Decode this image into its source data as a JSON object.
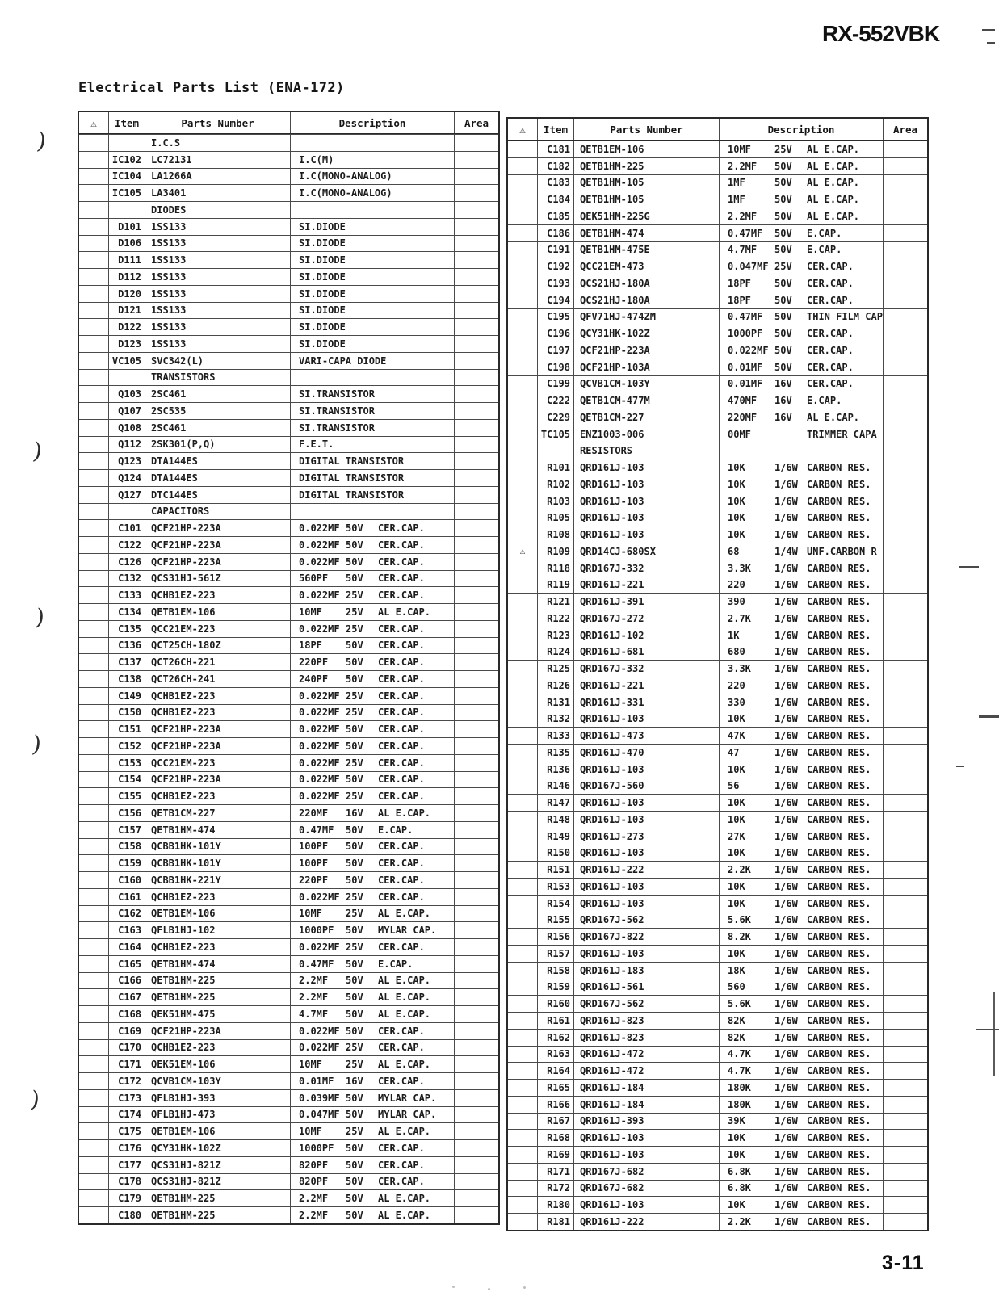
{
  "page": {
    "model": "RX-552VBK",
    "title": "Electrical Parts List (ENA-172)",
    "page_number": "3-11"
  },
  "table_headers": {
    "warning": "⚠",
    "item": "Item",
    "parts_number": "Parts Number",
    "description": "Description",
    "area": "Area"
  },
  "artifacts": {
    "margin_mark": ")"
  },
  "left_table": {
    "rows": [
      {
        "section": "I.C.S"
      },
      {
        "item": "IC102",
        "part": "LC72131",
        "d1": "I.C(M)"
      },
      {
        "item": "IC104",
        "part": "LA1266A",
        "d1": "I.C(MONO-ANALOG)"
      },
      {
        "item": "IC105",
        "part": "LA3401",
        "d1": "I.C(MONO-ANALOG)"
      },
      {
        "section": "DIODES"
      },
      {
        "item": "D101",
        "part": "1SS133",
        "d1": "SI.DIODE"
      },
      {
        "item": "D106",
        "part": "1SS133",
        "d1": "SI.DIODE"
      },
      {
        "item": "D111",
        "part": "1SS133",
        "d1": "SI.DIODE"
      },
      {
        "item": "D112",
        "part": "1SS133",
        "d1": "SI.DIODE"
      },
      {
        "item": "D120",
        "part": "1SS133",
        "d1": "SI.DIODE"
      },
      {
        "item": "D121",
        "part": "1SS133",
        "d1": "SI.DIODE"
      },
      {
        "item": "D122",
        "part": "1SS133",
        "d1": "SI.DIODE"
      },
      {
        "item": "D123",
        "part": "1SS133",
        "d1": "SI.DIODE"
      },
      {
        "item": "VC105",
        "part": "SVC342(L)",
        "d1": "VARI-CAPA DIODE"
      },
      {
        "section": "TRANSISTORS"
      },
      {
        "item": "Q103",
        "part": "2SC461",
        "d1": "SI.TRANSISTOR"
      },
      {
        "item": "Q107",
        "part": "2SC535",
        "d1": "SI.TRANSISTOR"
      },
      {
        "item": "Q108",
        "part": "2SC461",
        "d1": "SI.TRANSISTOR"
      },
      {
        "item": "Q112",
        "part": "2SK301(P,Q)",
        "d1": "F.E.T."
      },
      {
        "item": "Q123",
        "part": "DTA144ES",
        "d1": "DIGITAL TRANSISTOR"
      },
      {
        "item": "Q124",
        "part": "DTA144ES",
        "d1": "DIGITAL TRANSISTOR"
      },
      {
        "item": "Q127",
        "part": "DTC144ES",
        "d1": "DIGITAL TRANSISTOR"
      },
      {
        "section": "CAPACITORS"
      },
      {
        "item": "C101",
        "part": "QCF21HP-223A",
        "d1": "0.022MF",
        "d2": "50V",
        "d3": "CER.CAP."
      },
      {
        "item": "C122",
        "part": "QCF21HP-223A",
        "d1": "0.022MF",
        "d2": "50V",
        "d3": "CER.CAP."
      },
      {
        "item": "C126",
        "part": "QCF21HP-223A",
        "d1": "0.022MF",
        "d2": "50V",
        "d3": "CER.CAP."
      },
      {
        "item": "C132",
        "part": "QCS31HJ-561Z",
        "d1": "560PF",
        "d2": "50V",
        "d3": "CER.CAP."
      },
      {
        "item": "C133",
        "part": "QCHB1EZ-223",
        "d1": "0.022MF",
        "d2": "25V",
        "d3": "CER.CAP."
      },
      {
        "item": "C134",
        "part": "QETB1EM-106",
        "d1": "10MF",
        "d2": "25V",
        "d3": "AL E.CAP."
      },
      {
        "item": "C135",
        "part": "QCC21EM-223",
        "d1": "0.022MF",
        "d2": "25V",
        "d3": "CER.CAP."
      },
      {
        "item": "C136",
        "part": "QCT25CH-180Z",
        "d1": "18PF",
        "d2": "50V",
        "d3": "CER.CAP."
      },
      {
        "item": "C137",
        "part": "QCT26CH-221",
        "d1": "220PF",
        "d2": "50V",
        "d3": "CER.CAP."
      },
      {
        "item": "C138",
        "part": "QCT26CH-241",
        "d1": "240PF",
        "d2": "50V",
        "d3": "CER.CAP."
      },
      {
        "item": "C149",
        "part": "QCHB1EZ-223",
        "d1": "0.022MF",
        "d2": "25V",
        "d3": "CER.CAP."
      },
      {
        "item": "C150",
        "part": "QCHB1EZ-223",
        "d1": "0.022MF",
        "d2": "25V",
        "d3": "CER.CAP."
      },
      {
        "item": "C151",
        "part": "QCF21HP-223A",
        "d1": "0.022MF",
        "d2": "50V",
        "d3": "CER.CAP."
      },
      {
        "item": "C152",
        "part": "QCF21HP-223A",
        "d1": "0.022MF",
        "d2": "50V",
        "d3": "CER.CAP."
      },
      {
        "item": "C153",
        "part": "QCC21EM-223",
        "d1": "0.022MF",
        "d2": "25V",
        "d3": "CER.CAP."
      },
      {
        "item": "C154",
        "part": "QCF21HP-223A",
        "d1": "0.022MF",
        "d2": "50V",
        "d3": "CER.CAP."
      },
      {
        "item": "C155",
        "part": "QCHB1EZ-223",
        "d1": "0.022MF",
        "d2": "25V",
        "d3": "CER.CAP."
      },
      {
        "item": "C156",
        "part": "QETB1CM-227",
        "d1": "220MF",
        "d2": "16V",
        "d3": "AL E.CAP."
      },
      {
        "item": "C157",
        "part": "QETB1HM-474",
        "d1": "0.47MF",
        "d2": "50V",
        "d3": "E.CAP."
      },
      {
        "item": "C158",
        "part": "QCBB1HK-101Y",
        "d1": "100PF",
        "d2": "50V",
        "d3": "CER.CAP."
      },
      {
        "item": "C159",
        "part": "QCBB1HK-101Y",
        "d1": "100PF",
        "d2": "50V",
        "d3": "CER.CAP."
      },
      {
        "item": "C160",
        "part": "QCBB1HK-221Y",
        "d1": "220PF",
        "d2": "50V",
        "d3": "CER.CAP."
      },
      {
        "item": "C161",
        "part": "QCHB1EZ-223",
        "d1": "0.022MF",
        "d2": "25V",
        "d3": "CER.CAP."
      },
      {
        "item": "C162",
        "part": "QETB1EM-106",
        "d1": "10MF",
        "d2": "25V",
        "d3": "AL E.CAP."
      },
      {
        "item": "C163",
        "part": "QFLB1HJ-102",
        "d1": "1000PF",
        "d2": "50V",
        "d3": "MYLAR CAP."
      },
      {
        "item": "C164",
        "part": "QCHB1EZ-223",
        "d1": "0.022MF",
        "d2": "25V",
        "d3": "CER.CAP."
      },
      {
        "item": "C165",
        "part": "QETB1HM-474",
        "d1": "0.47MF",
        "d2": "50V",
        "d3": "E.CAP."
      },
      {
        "item": "C166",
        "part": "QETB1HM-225",
        "d1": "2.2MF",
        "d2": "50V",
        "d3": "AL E.CAP."
      },
      {
        "item": "C167",
        "part": "QETB1HM-225",
        "d1": "2.2MF",
        "d2": "50V",
        "d3": "AL E.CAP."
      },
      {
        "item": "C168",
        "part": "QEK51HM-475",
        "d1": "4.7MF",
        "d2": "50V",
        "d3": "AL E.CAP."
      },
      {
        "item": "C169",
        "part": "QCF21HP-223A",
        "d1": "0.022MF",
        "d2": "50V",
        "d3": "CER.CAP."
      },
      {
        "item": "C170",
        "part": "QCHB1EZ-223",
        "d1": "0.022MF",
        "d2": "25V",
        "d3": "CER.CAP."
      },
      {
        "item": "C171",
        "part": "QEK51EM-106",
        "d1": "10MF",
        "d2": "25V",
        "d3": "AL E.CAP."
      },
      {
        "item": "C172",
        "part": "QCVB1CM-103Y",
        "d1": "0.01MF",
        "d2": "16V",
        "d3": "CER.CAP."
      },
      {
        "item": "C173",
        "part": "QFLB1HJ-393",
        "d1": "0.039MF",
        "d2": "50V",
        "d3": "MYLAR CAP."
      },
      {
        "item": "C174",
        "part": "QFLB1HJ-473",
        "d1": "0.047MF",
        "d2": "50V",
        "d3": "MYLAR CAP."
      },
      {
        "item": "C175",
        "part": "QETB1EM-106",
        "d1": "10MF",
        "d2": "25V",
        "d3": "AL E.CAP."
      },
      {
        "item": "C176",
        "part": "QCY31HK-102Z",
        "d1": "1000PF",
        "d2": "50V",
        "d3": "CER.CAP."
      },
      {
        "item": "C177",
        "part": "QCS31HJ-821Z",
        "d1": "820PF",
        "d2": "50V",
        "d3": "CER.CAP."
      },
      {
        "item": "C178",
        "part": "QCS31HJ-821Z",
        "d1": "820PF",
        "d2": "50V",
        "d3": "CER.CAP."
      },
      {
        "item": "C179",
        "part": "QETB1HM-225",
        "d1": "2.2MF",
        "d2": "50V",
        "d3": "AL E.CAP."
      },
      {
        "item": "C180",
        "part": "QETB1HM-225",
        "d1": "2.2MF",
        "d2": "50V",
        "d3": "AL E.CAP."
      }
    ]
  },
  "right_table": {
    "rows": [
      {
        "item": "C181",
        "part": "QETB1EM-106",
        "d1": "10MF",
        "d2": "25V",
        "d3": "AL E.CAP."
      },
      {
        "item": "C182",
        "part": "QETB1HM-225",
        "d1": "2.2MF",
        "d2": "50V",
        "d3": "AL E.CAP."
      },
      {
        "item": "C183",
        "part": "QETB1HM-105",
        "d1": "1MF",
        "d2": "50V",
        "d3": "AL E.CAP."
      },
      {
        "item": "C184",
        "part": "QETB1HM-105",
        "d1": "1MF",
        "d2": "50V",
        "d3": "AL E.CAP."
      },
      {
        "item": "C185",
        "part": "QEK51HM-225G",
        "d1": "2.2MF",
        "d2": "50V",
        "d3": "AL E.CAP."
      },
      {
        "item": "C186",
        "part": "QETB1HM-474",
        "d1": "0.47MF",
        "d2": "50V",
        "d3": "E.CAP."
      },
      {
        "item": "C191",
        "part": "QETB1HM-475E",
        "d1": "4.7MF",
        "d2": "50V",
        "d3": "E.CAP."
      },
      {
        "item": "C192",
        "part": "QCC21EM-473",
        "d1": "0.047MF",
        "d2": "25V",
        "d3": "CER.CAP."
      },
      {
        "item": "C193",
        "part": "QCS21HJ-180A",
        "d1": "18PF",
        "d2": "50V",
        "d3": "CER.CAP."
      },
      {
        "item": "C194",
        "part": "QCS21HJ-180A",
        "d1": "18PF",
        "d2": "50V",
        "d3": "CER.CAP."
      },
      {
        "item": "C195",
        "part": "QFV71HJ-474ZM",
        "d1": "0.47MF",
        "d2": "50V",
        "d3": "THIN FILM CAP."
      },
      {
        "item": "C196",
        "part": "QCY31HK-102Z",
        "d1": "1000PF",
        "d2": "50V",
        "d3": "CER.CAP."
      },
      {
        "item": "C197",
        "part": "QCF21HP-223A",
        "d1": "0.022MF",
        "d2": "50V",
        "d3": "CER.CAP."
      },
      {
        "item": "C198",
        "part": "QCF21HP-103A",
        "d1": "0.01MF",
        "d2": "50V",
        "d3": "CER.CAP."
      },
      {
        "item": "C199",
        "part": "QCVB1CM-103Y",
        "d1": "0.01MF",
        "d2": "16V",
        "d3": "CER.CAP."
      },
      {
        "item": "C222",
        "part": "QETB1CM-477M",
        "d1": "470MF",
        "d2": "16V",
        "d3": "E.CAP."
      },
      {
        "item": "C229",
        "part": "QETB1CM-227",
        "d1": "220MF",
        "d2": "16V",
        "d3": "AL E.CAP."
      },
      {
        "item": "TC105",
        "part": "ENZ1003-006",
        "d1": "00MF",
        "d2": "",
        "d3": "TRIMMER CAPA"
      },
      {
        "section": "RESISTORS"
      },
      {
        "item": "R101",
        "part": "QRD161J-103",
        "d1": "10K",
        "d2": "1/6W",
        "d3": "CARBON RES."
      },
      {
        "item": "R102",
        "part": "QRD161J-103",
        "d1": "10K",
        "d2": "1/6W",
        "d3": "CARBON RES."
      },
      {
        "item": "R103",
        "part": "QRD161J-103",
        "d1": "10K",
        "d2": "1/6W",
        "d3": "CARBON RES."
      },
      {
        "item": "R105",
        "part": "QRD161J-103",
        "d1": "10K",
        "d2": "1/6W",
        "d3": "CARBON RES."
      },
      {
        "item": "R108",
        "part": "QRD161J-103",
        "d1": "10K",
        "d2": "1/6W",
        "d3": "CARBON RES."
      },
      {
        "warn": "⚠",
        "item": "R109",
        "part": "QRD14CJ-680SX",
        "d1": "68",
        "d2": "1/4W",
        "d3": "UNF.CARBON R"
      },
      {
        "item": "R118",
        "part": "QRD167J-332",
        "d1": "3.3K",
        "d2": "1/6W",
        "d3": "CARBON RES."
      },
      {
        "item": "R119",
        "part": "QRD161J-221",
        "d1": "220",
        "d2": "1/6W",
        "d3": "CARBON RES."
      },
      {
        "item": "R121",
        "part": "QRD161J-391",
        "d1": "390",
        "d2": "1/6W",
        "d3": "CARBON RES."
      },
      {
        "item": "R122",
        "part": "QRD167J-272",
        "d1": "2.7K",
        "d2": "1/6W",
        "d3": "CARBON RES."
      },
      {
        "item": "R123",
        "part": "QRD161J-102",
        "d1": "1K",
        "d2": "1/6W",
        "d3": "CARBON RES."
      },
      {
        "item": "R124",
        "part": "QRD161J-681",
        "d1": "680",
        "d2": "1/6W",
        "d3": "CARBON RES."
      },
      {
        "item": "R125",
        "part": "QRD167J-332",
        "d1": "3.3K",
        "d2": "1/6W",
        "d3": "CARBON RES."
      },
      {
        "item": "R126",
        "part": "QRD161J-221",
        "d1": "220",
        "d2": "1/6W",
        "d3": "CARBON RES."
      },
      {
        "item": "R131",
        "part": "QRD161J-331",
        "d1": "330",
        "d2": "1/6W",
        "d3": "CARBON RES."
      },
      {
        "item": "R132",
        "part": "QRD161J-103",
        "d1": "10K",
        "d2": "1/6W",
        "d3": "CARBON RES."
      },
      {
        "item": "R133",
        "part": "QRD161J-473",
        "d1": "47K",
        "d2": "1/6W",
        "d3": "CARBON RES."
      },
      {
        "item": "R135",
        "part": "QRD161J-470",
        "d1": "47",
        "d2": "1/6W",
        "d3": "CARBON RES."
      },
      {
        "item": "R136",
        "part": "QRD161J-103",
        "d1": "10K",
        "d2": "1/6W",
        "d3": "CARBON RES."
      },
      {
        "item": "R146",
        "part": "QRD167J-560",
        "d1": "56",
        "d2": "1/6W",
        "d3": "CARBON RES."
      },
      {
        "item": "R147",
        "part": "QRD161J-103",
        "d1": "10K",
        "d2": "1/6W",
        "d3": "CARBON RES."
      },
      {
        "item": "R148",
        "part": "QRD161J-103",
        "d1": "10K",
        "d2": "1/6W",
        "d3": "CARBON RES."
      },
      {
        "item": "R149",
        "part": "QRD161J-273",
        "d1": "27K",
        "d2": "1/6W",
        "d3": "CARBON RES."
      },
      {
        "item": "R150",
        "part": "QRD161J-103",
        "d1": "10K",
        "d2": "1/6W",
        "d3": "CARBON RES."
      },
      {
        "item": "R151",
        "part": "QRD161J-222",
        "d1": "2.2K",
        "d2": "1/6W",
        "d3": "CARBON RES."
      },
      {
        "item": "R153",
        "part": "QRD161J-103",
        "d1": "10K",
        "d2": "1/6W",
        "d3": "CARBON RES."
      },
      {
        "item": "R154",
        "part": "QRD161J-103",
        "d1": "10K",
        "d2": "1/6W",
        "d3": "CARBON RES."
      },
      {
        "item": "R155",
        "part": "QRD167J-562",
        "d1": "5.6K",
        "d2": "1/6W",
        "d3": "CARBON RES."
      },
      {
        "item": "R156",
        "part": "QRD167J-822",
        "d1": "8.2K",
        "d2": "1/6W",
        "d3": "CARBON RES."
      },
      {
        "item": "R157",
        "part": "QRD161J-103",
        "d1": "10K",
        "d2": "1/6W",
        "d3": "CARBON RES."
      },
      {
        "item": "R158",
        "part": "QRD161J-183",
        "d1": "18K",
        "d2": "1/6W",
        "d3": "CARBON RES."
      },
      {
        "item": "R159",
        "part": "QRD161J-561",
        "d1": "560",
        "d2": "1/6W",
        "d3": "CARBON RES."
      },
      {
        "item": "R160",
        "part": "QRD167J-562",
        "d1": "5.6K",
        "d2": "1/6W",
        "d3": "CARBON RES."
      },
      {
        "item": "R161",
        "part": "QRD161J-823",
        "d1": "82K",
        "d2": "1/6W",
        "d3": "CARBON RES."
      },
      {
        "item": "R162",
        "part": "QRD161J-823",
        "d1": "82K",
        "d2": "1/6W",
        "d3": "CARBON RES."
      },
      {
        "item": "R163",
        "part": "QRD161J-472",
        "d1": "4.7K",
        "d2": "1/6W",
        "d3": "CARBON RES."
      },
      {
        "item": "R164",
        "part": "QRD161J-472",
        "d1": "4.7K",
        "d2": "1/6W",
        "d3": "CARBON RES."
      },
      {
        "item": "R165",
        "part": "QRD161J-184",
        "d1": "180K",
        "d2": "1/6W",
        "d3": "CARBON RES."
      },
      {
        "item": "R166",
        "part": "QRD161J-184",
        "d1": "180K",
        "d2": "1/6W",
        "d3": "CARBON RES."
      },
      {
        "item": "R167",
        "part": "QRD161J-393",
        "d1": "39K",
        "d2": "1/6W",
        "d3": "CARBON RES."
      },
      {
        "item": "R168",
        "part": "QRD161J-103",
        "d1": "10K",
        "d2": "1/6W",
        "d3": "CARBON RES."
      },
      {
        "item": "R169",
        "part": "QRD161J-103",
        "d1": "10K",
        "d2": "1/6W",
        "d3": "CARBON RES."
      },
      {
        "item": "R171",
        "part": "QRD167J-682",
        "d1": "6.8K",
        "d2": "1/6W",
        "d3": "CARBON RES."
      },
      {
        "item": "R172",
        "part": "QRD167J-682",
        "d1": "6.8K",
        "d2": "1/6W",
        "d3": "CARBON RES."
      },
      {
        "item": "R180",
        "part": "QRD161J-103",
        "d1": "10K",
        "d2": "1/6W",
        "d3": "CARBON RES."
      },
      {
        "item": "R181",
        "part": "QRD161J-222",
        "d1": "2.2K",
        "d2": "1/6W",
        "d3": "CARBON RES."
      }
    ]
  }
}
